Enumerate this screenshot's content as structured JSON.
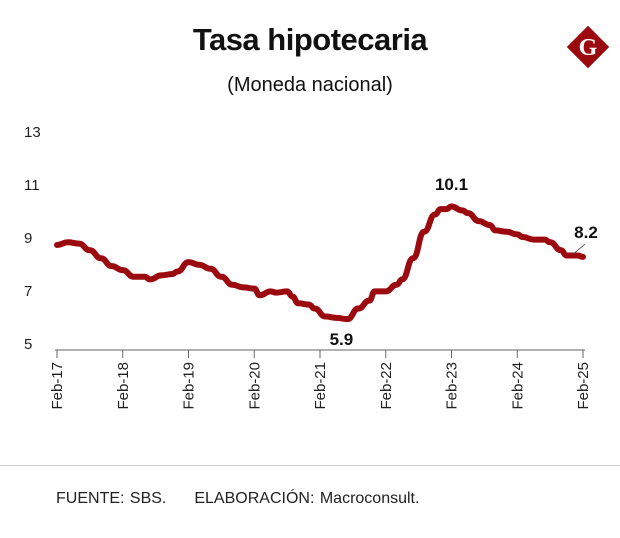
{
  "header": {
    "title": "Tasa hipotecaria",
    "subtitle": "(Moneda nacional)",
    "logo_letter": "G"
  },
  "colors": {
    "line": "#9b0a0e",
    "logo_bg": "#9b0a0e",
    "axis": "#555555",
    "text": "#111111"
  },
  "footer": {
    "source": "FUENTE: SBS.",
    "elaboration": "ELABORACIÓN: Macroconsult."
  },
  "chart_data": {
    "type": "line",
    "title": "Tasa hipotecaria",
    "subtitle": "(Moneda nacional)",
    "xlabel": "",
    "ylabel": "",
    "ylim": [
      5,
      13
    ],
    "yticks": [
      13,
      11,
      9,
      7,
      5
    ],
    "ytick_labels": [
      "13",
      "11",
      "9",
      "7",
      "5"
    ],
    "xticks": [
      "2017-02",
      "2018-02",
      "2019-02",
      "2020-02",
      "2021-02",
      "2022-02",
      "2023-02",
      "2024-02",
      "2025-02"
    ],
    "xtick_labels": [
      "Feb-17",
      "Feb-18",
      "Feb-19",
      "Feb-20",
      "Feb-21",
      "Feb-22",
      "Feb-23",
      "Feb-24",
      "Feb-25"
    ],
    "grid": false,
    "series": [
      {
        "x": [
          "2017-02",
          "2017-04",
          "2017-06",
          "2017-08",
          "2017-10",
          "2017-12",
          "2018-02",
          "2018-04",
          "2018-06",
          "2018-07",
          "2018-09",
          "2018-11",
          "2018-12",
          "2019-02",
          "2019-04",
          "2019-06",
          "2019-08",
          "2019-10",
          "2019-12",
          "2020-02",
          "2020-03",
          "2020-05",
          "2020-06",
          "2020-08",
          "2020-09",
          "2020-10",
          "2020-12",
          "2021-01",
          "2021-03",
          "2021-05",
          "2021-07",
          "2021-09",
          "2021-11",
          "2021-12",
          "2022-02",
          "2022-04",
          "2022-05",
          "2022-07",
          "2022-09",
          "2022-11",
          "2022-12",
          "2023-01",
          "2023-02",
          "2023-04",
          "2023-05",
          "2023-07",
          "2023-09",
          "2023-10",
          "2023-12",
          "2024-02",
          "2024-03",
          "2024-05",
          "2024-07",
          "2024-08",
          "2024-10",
          "2024-11",
          "2025-01",
          "2025-02"
        ],
        "values": [
          8.7,
          8.8,
          8.75,
          8.5,
          8.2,
          7.9,
          7.75,
          7.5,
          7.5,
          7.4,
          7.55,
          7.6,
          7.7,
          8.05,
          7.95,
          7.8,
          7.5,
          7.2,
          7.1,
          7.05,
          6.8,
          6.95,
          6.9,
          6.95,
          6.75,
          6.5,
          6.45,
          6.3,
          6.0,
          5.95,
          5.9,
          6.3,
          6.6,
          6.95,
          6.95,
          7.2,
          7.4,
          8.2,
          9.2,
          9.85,
          10.05,
          10.05,
          10.15,
          10.0,
          9.9,
          9.6,
          9.45,
          9.25,
          9.2,
          9.1,
          9.0,
          8.9,
          8.9,
          8.8,
          8.5,
          8.3,
          8.3,
          8.25
        ]
      }
    ],
    "annotations": [
      {
        "label": "5.9",
        "x": "2021-07",
        "y": 5.9
      },
      {
        "label": "10.1",
        "x": "2023-02",
        "y": 10.1
      },
      {
        "label": "8.2",
        "x": "2025-02",
        "y": 8.2
      }
    ]
  }
}
